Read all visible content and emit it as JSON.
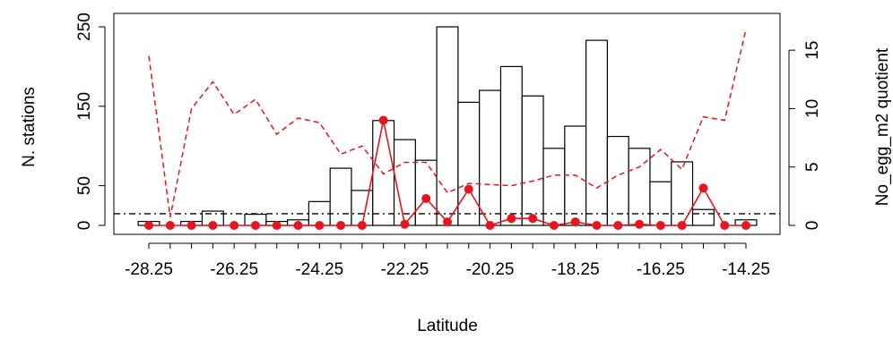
{
  "chart_data": {
    "type": "bar",
    "xlabel": "Latitude",
    "ylabel": "N. stations",
    "y2label": "No_egg_m2 quotient",
    "x_tick_labels": [
      "-28.25",
      "-26.25",
      "-24.25",
      "-22.25",
      "-20.25",
      "-18.25",
      "-16.25",
      "-14.25"
    ],
    "y_ticks": [
      0,
      50,
      150,
      250
    ],
    "y2_ticks": [
      0,
      5,
      10,
      15
    ],
    "ylim": [
      0,
      250
    ],
    "y2lim": [
      0,
      17
    ],
    "categories": [
      -28.25,
      -27.75,
      -27.25,
      -26.75,
      -26.25,
      -25.75,
      -25.25,
      -24.75,
      -24.25,
      -23.75,
      -23.25,
      -22.75,
      -22.25,
      -21.75,
      -21.25,
      -20.75,
      -20.25,
      -19.75,
      -19.25,
      -18.75,
      -18.25,
      -17.75,
      -17.25,
      -16.75,
      -16.25,
      -15.75,
      -15.25,
      -14.75,
      -14.25
    ],
    "series": [
      {
        "kind": "bar",
        "axis": "left",
        "values": [
          5,
          0,
          5,
          18,
          0,
          14,
          5,
          7,
          30,
          72,
          44,
          132,
          108,
          82,
          250,
          155,
          170,
          200,
          163,
          97,
          125,
          233,
          112,
          97,
          55,
          80,
          20,
          0,
          7
        ]
      },
      {
        "kind": "line-points",
        "axis": "right",
        "color": "#e8141e",
        "values": [
          0,
          0,
          0,
          0,
          0,
          0,
          0,
          0,
          0,
          0,
          0,
          9,
          0.1,
          2.3,
          0.3,
          3.1,
          0,
          0.6,
          0.6,
          0,
          0.3,
          0,
          0,
          0.1,
          0,
          0,
          3.2,
          0,
          0
        ]
      },
      {
        "kind": "dashed-line",
        "axis": "right",
        "color": "#e8141e",
        "values": [
          14.5,
          0.7,
          10,
          12.3,
          9.5,
          10.8,
          7.8,
          9.2,
          8.8,
          6.1,
          6.8,
          4.4,
          5.4,
          5.4,
          2.8,
          3.6,
          3.5,
          3.4,
          3.8,
          4.3,
          4.3,
          3.2,
          4.3,
          5.0,
          6.5,
          4.8,
          9.3,
          9.0,
          16.8
        ]
      }
    ],
    "reference_line": {
      "axis": "right",
      "value": 1.0,
      "style": "dash-dot"
    },
    "grid": false,
    "legend": "none",
    "colors": {
      "bar_fill": "#ffffff",
      "bar_stroke": "#000000",
      "points": "#e8141e",
      "dashed": "#e8141e"
    }
  }
}
